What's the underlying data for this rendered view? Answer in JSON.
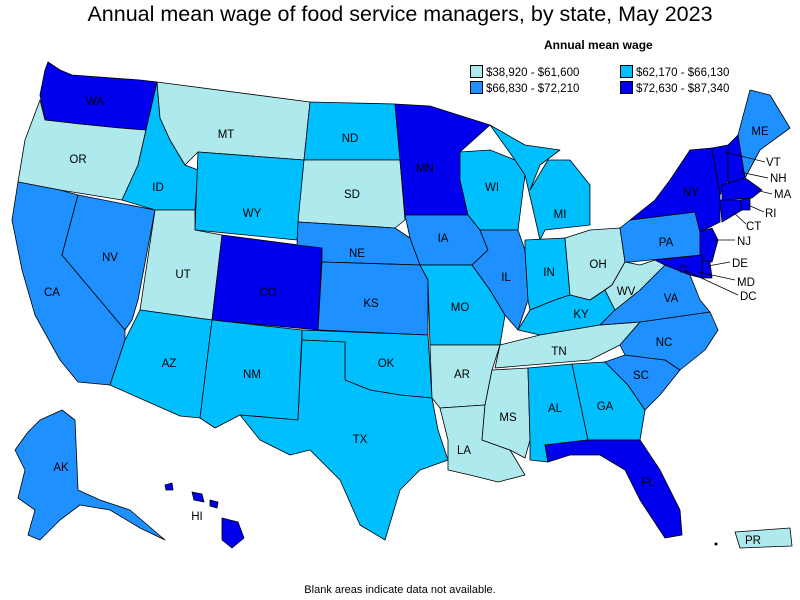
{
  "title": "Annual mean wage of food service managers, by state, May 2023",
  "legend": {
    "title": "Annual mean wage",
    "bins": [
      {
        "label": "$38,920 - $61,600",
        "color": "#aee9ee"
      },
      {
        "label": "$62,170 - $66,130",
        "color": "#00bfff"
      },
      {
        "label": "$66,830 - $72,210",
        "color": "#1e90ff"
      },
      {
        "label": "$72,630 - $87,340",
        "color": "#0000ee"
      }
    ]
  },
  "footnote": "Blank areas indicate data not available.",
  "states": [
    {
      "abbr": "WA",
      "bin": 3
    },
    {
      "abbr": "OR",
      "bin": 0
    },
    {
      "abbr": "CA",
      "bin": 2
    },
    {
      "abbr": "NV",
      "bin": 2
    },
    {
      "abbr": "ID",
      "bin": 1
    },
    {
      "abbr": "MT",
      "bin": 0
    },
    {
      "abbr": "WY",
      "bin": 1
    },
    {
      "abbr": "UT",
      "bin": 0
    },
    {
      "abbr": "AZ",
      "bin": 1
    },
    {
      "abbr": "CO",
      "bin": 3
    },
    {
      "abbr": "NM",
      "bin": 1
    },
    {
      "abbr": "ND",
      "bin": 1
    },
    {
      "abbr": "SD",
      "bin": 0
    },
    {
      "abbr": "NE",
      "bin": 2
    },
    {
      "abbr": "KS",
      "bin": 2
    },
    {
      "abbr": "OK",
      "bin": 1
    },
    {
      "abbr": "TX",
      "bin": 1
    },
    {
      "abbr": "MN",
      "bin": 3
    },
    {
      "abbr": "IA",
      "bin": 2
    },
    {
      "abbr": "MO",
      "bin": 1
    },
    {
      "abbr": "AR",
      "bin": 0
    },
    {
      "abbr": "LA",
      "bin": 0
    },
    {
      "abbr": "WI",
      "bin": 1
    },
    {
      "abbr": "IL",
      "bin": 2
    },
    {
      "abbr": "MI",
      "bin": 1
    },
    {
      "abbr": "IN",
      "bin": 1
    },
    {
      "abbr": "OH",
      "bin": 0
    },
    {
      "abbr": "KY",
      "bin": 1
    },
    {
      "abbr": "TN",
      "bin": 0
    },
    {
      "abbr": "MS",
      "bin": 0
    },
    {
      "abbr": "AL",
      "bin": 1
    },
    {
      "abbr": "GA",
      "bin": 1
    },
    {
      "abbr": "FL",
      "bin": 3
    },
    {
      "abbr": "SC",
      "bin": 2
    },
    {
      "abbr": "NC",
      "bin": 2
    },
    {
      "abbr": "VA",
      "bin": 2
    },
    {
      "abbr": "WV",
      "bin": 0
    },
    {
      "abbr": "PA",
      "bin": 2
    },
    {
      "abbr": "NY",
      "bin": 3
    },
    {
      "abbr": "VT",
      "bin": 3
    },
    {
      "abbr": "NH",
      "bin": 3
    },
    {
      "abbr": "ME",
      "bin": 2
    },
    {
      "abbr": "MA",
      "bin": 3
    },
    {
      "abbr": "RI",
      "bin": 3
    },
    {
      "abbr": "CT",
      "bin": 3
    },
    {
      "abbr": "NJ",
      "bin": 3
    },
    {
      "abbr": "DE",
      "bin": 3
    },
    {
      "abbr": "MD",
      "bin": 3
    },
    {
      "abbr": "DC",
      "bin": 3
    },
    {
      "abbr": "AK",
      "bin": 2
    },
    {
      "abbr": "HI",
      "bin": 3
    },
    {
      "abbr": "PR",
      "bin": 0
    }
  ]
}
